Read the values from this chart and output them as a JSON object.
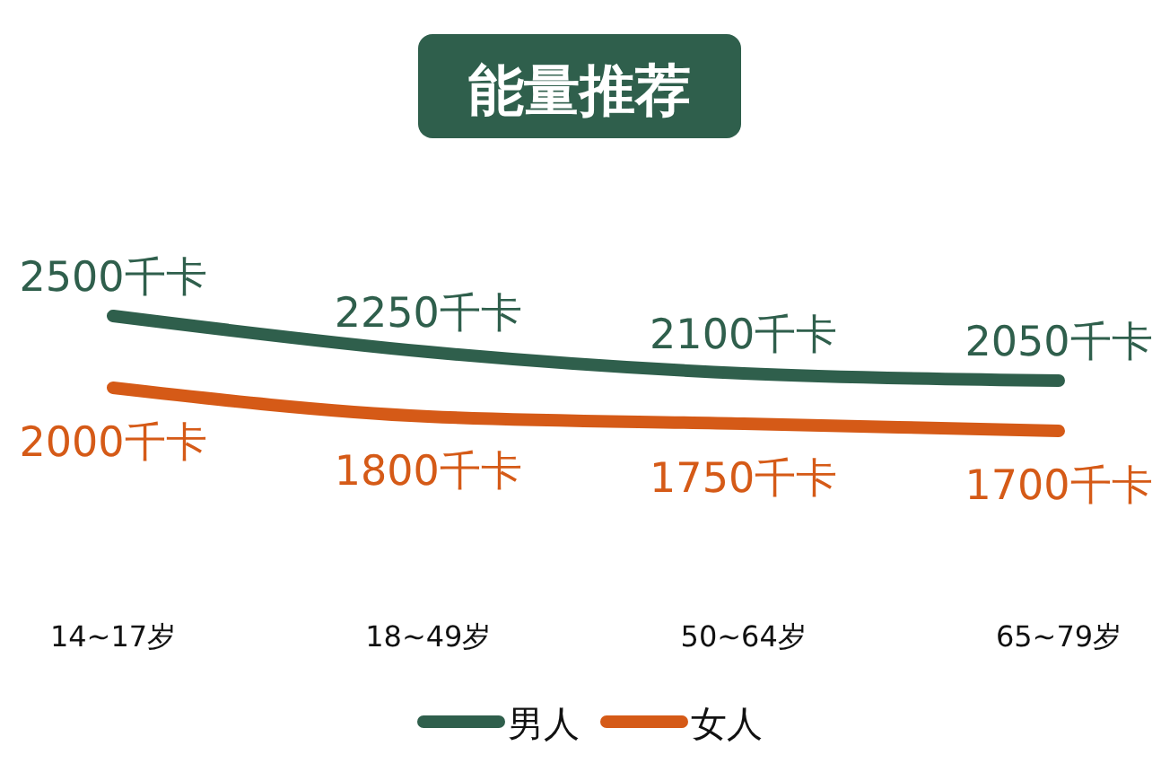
{
  "chart_data": {
    "type": "line",
    "title": "能量推荐",
    "categories": [
      "14~17岁",
      "18~49岁",
      "50~64岁",
      "65~79岁"
    ],
    "series": [
      {
        "name": "男人",
        "color": "#2f5f4c",
        "values": [
          2500,
          2250,
          2100,
          2050
        ],
        "value_labels": [
          "2500千卡",
          "2250千卡",
          "2100千卡",
          "2050千卡"
        ]
      },
      {
        "name": "女人",
        "color": "#d55a17",
        "values": [
          2000,
          1800,
          1750,
          1700
        ],
        "value_labels": [
          "2000千卡",
          "1800千卡",
          "1750千卡",
          "1700千卡"
        ]
      }
    ],
    "legend": "bottom",
    "marker": "none",
    "line_style": "solid"
  }
}
